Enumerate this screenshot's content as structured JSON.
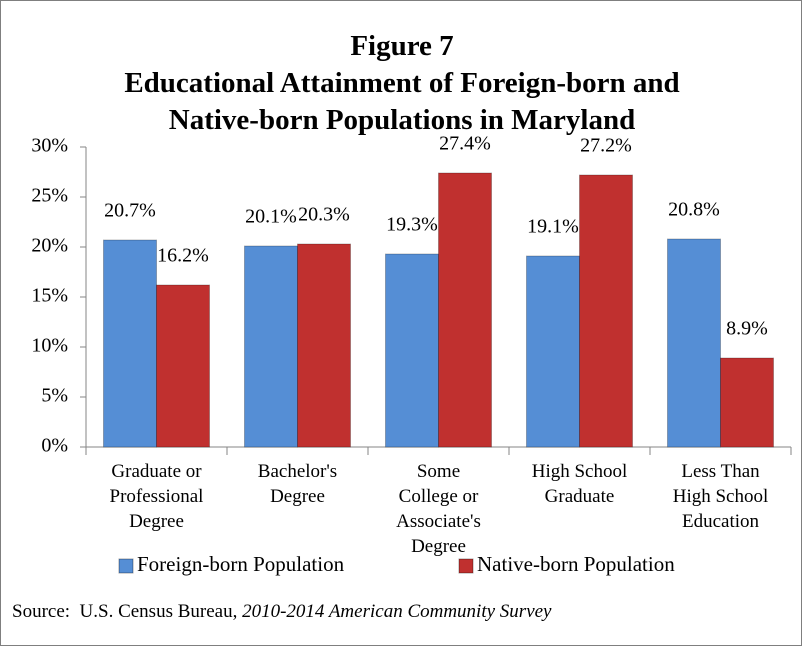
{
  "chart_data": {
    "type": "bar",
    "title": "Figure 7",
    "subtitle": "Educational Attainment of Foreign-born and\nNative-born Populations in Maryland",
    "categories": [
      "Graduate or\nProfessional\nDegree",
      "Bachelor's\nDegree",
      "Some\nCollege or\nAssociate's\nDegree",
      "High School\nGraduate",
      "Less Than\nHigh School\nEducation"
    ],
    "series": [
      {
        "name": "Foreign-born Population",
        "color": "#558ed5",
        "values": [
          20.7,
          20.1,
          19.3,
          19.1,
          20.8
        ],
        "value_labels": [
          "20.7%",
          "20.1%",
          "19.3%",
          "19.1%",
          "20.8%"
        ]
      },
      {
        "name": "Native-born Population",
        "color": "#c0302f",
        "values": [
          16.2,
          20.3,
          27.4,
          27.2,
          8.9
        ],
        "value_labels": [
          "16.2%",
          "20.3%",
          "27.4%",
          "27.2%",
          "8.9%"
        ]
      }
    ],
    "ylim": [
      0,
      30
    ],
    "yticks": [
      {
        "value": 0,
        "label": "0%"
      },
      {
        "value": 5,
        "label": "5%"
      },
      {
        "value": 10,
        "label": "10%"
      },
      {
        "value": 15,
        "label": "15%"
      },
      {
        "value": 20,
        "label": "20%"
      },
      {
        "value": 25,
        "label": "25%"
      },
      {
        "value": 30,
        "label": "30%"
      }
    ],
    "grid": false,
    "legend": "bottom",
    "source": {
      "text": "Source:  U.S. Census Bureau, ",
      "emphasis": "2010-2014 American Community Survey"
    }
  }
}
